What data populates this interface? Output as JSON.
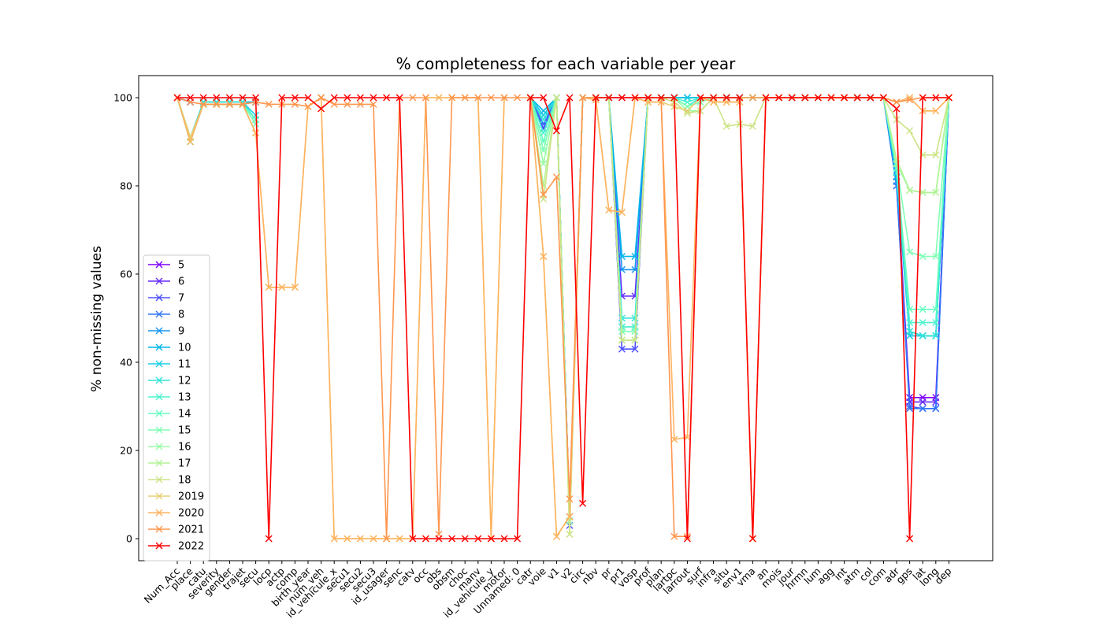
{
  "chart_data": {
    "type": "line",
    "title": "% completeness for each variable per year",
    "xlabel": "",
    "ylabel": "% non-missing values",
    "ylim": [
      -5,
      105
    ],
    "yticks": [
      0,
      20,
      40,
      60,
      80,
      100
    ],
    "grid": false,
    "legend_position": "center-left",
    "marker": "x",
    "categories": [
      "Num_Acc",
      "place",
      "catu",
      "severity",
      "gender",
      "trajet",
      "secu",
      "locp",
      "actp",
      "comp",
      "birth_year",
      "num_veh",
      "id_vehicule_x",
      "secu1",
      "secu2",
      "secu3",
      "id_usager",
      "senc",
      "catv",
      "occ",
      "obs",
      "obsm",
      "choc",
      "manv",
      "id_vehicule_y",
      "motor",
      "Unnamed: 0",
      "catr",
      "voie",
      "v1",
      "v2",
      "circ",
      "nbv",
      "pr",
      "pr1",
      "vosp",
      "prof",
      "plan",
      "lartpc",
      "larrout",
      "surf",
      "infra",
      "situ",
      "env1",
      "vma",
      "an",
      "mois",
      "jour",
      "hrmn",
      "lum",
      "agg",
      "int",
      "atm",
      "col",
      "com",
      "adr",
      "gps",
      "lat",
      "long",
      "dep"
    ],
    "series": [
      {
        "name": "5",
        "color": "#7f00ff",
        "values": [
          100,
          99,
          null,
          null,
          null,
          null,
          99,
          null,
          null,
          null,
          null,
          100,
          null,
          null,
          null,
          null,
          null,
          null,
          null,
          null,
          null,
          null,
          null,
          null,
          null,
          null,
          null,
          100,
          93,
          100,
          5,
          100,
          100,
          100,
          100,
          100,
          100,
          100,
          100,
          100,
          100,
          100,
          100,
          100,
          100,
          100,
          100,
          100,
          100,
          100,
          100,
          100,
          100,
          100,
          100,
          82,
          32,
          32,
          32,
          100
        ]
      },
      {
        "name": "6",
        "color": "#6629fe",
        "values": [
          100,
          99,
          null,
          null,
          null,
          null,
          99,
          null,
          null,
          null,
          null,
          100,
          null,
          null,
          null,
          null,
          null,
          null,
          null,
          null,
          null,
          null,
          null,
          null,
          null,
          null,
          null,
          100,
          93,
          100,
          5,
          100,
          100,
          100,
          55,
          55,
          100,
          100,
          100,
          100,
          100,
          100,
          100,
          100,
          100,
          100,
          100,
          100,
          100,
          100,
          100,
          100,
          100,
          100,
          100,
          81,
          31,
          31,
          31,
          100
        ]
      },
      {
        "name": "7",
        "color": "#4c50fc",
        "values": [
          100,
          99,
          null,
          null,
          null,
          null,
          99,
          null,
          null,
          null,
          null,
          100,
          null,
          null,
          null,
          null,
          null,
          null,
          null,
          null,
          null,
          null,
          null,
          null,
          null,
          null,
          null,
          100,
          93,
          100,
          3,
          100,
          100,
          100,
          43,
          43,
          100,
          100,
          100,
          100,
          100,
          100,
          100,
          100,
          100,
          100,
          100,
          100,
          100,
          100,
          100,
          100,
          100,
          100,
          100,
          80,
          30,
          29.5,
          29.5,
          100
        ]
      },
      {
        "name": "8",
        "color": "#3176f8",
        "values": [
          100,
          99,
          null,
          null,
          null,
          null,
          99,
          null,
          null,
          null,
          null,
          100,
          null,
          null,
          null,
          null,
          null,
          null,
          null,
          null,
          null,
          null,
          null,
          null,
          null,
          null,
          null,
          100,
          94,
          100,
          4,
          100,
          100,
          100,
          48,
          48,
          100,
          100,
          100,
          100,
          100,
          100,
          100,
          100,
          100,
          100,
          100,
          100,
          100,
          100,
          100,
          100,
          100,
          100,
          100,
          80,
          29.5,
          29.5,
          29.5,
          100
        ]
      },
      {
        "name": "9",
        "color": "#1996f3",
        "values": [
          100,
          99,
          null,
          null,
          null,
          null,
          99,
          null,
          null,
          null,
          null,
          100,
          null,
          null,
          null,
          null,
          null,
          null,
          null,
          null,
          null,
          null,
          null,
          null,
          null,
          null,
          null,
          100,
          96,
          100,
          4,
          100,
          100,
          100,
          61,
          61,
          100,
          100,
          100,
          100,
          100,
          100,
          100,
          100,
          100,
          100,
          100,
          100,
          100,
          100,
          100,
          100,
          100,
          100,
          100,
          81,
          46,
          46,
          46,
          100
        ]
      },
      {
        "name": "10",
        "color": "#00b5eb",
        "values": [
          100,
          91,
          99,
          99,
          99,
          99,
          99,
          null,
          null,
          null,
          null,
          100,
          null,
          null,
          null,
          null,
          null,
          null,
          null,
          null,
          null,
          null,
          null,
          null,
          null,
          null,
          null,
          100,
          97,
          100,
          4,
          100,
          100,
          100,
          64,
          64,
          100,
          100,
          100,
          100,
          100,
          100,
          100,
          100,
          100,
          100,
          100,
          100,
          100,
          100,
          100,
          100,
          100,
          100,
          100,
          82,
          47,
          46,
          46,
          100
        ]
      },
      {
        "name": "11",
        "color": "#1acfe2",
        "values": [
          100,
          91,
          99,
          99,
          99,
          99,
          96,
          null,
          null,
          null,
          null,
          100,
          null,
          null,
          null,
          null,
          null,
          null,
          null,
          null,
          null,
          null,
          null,
          null,
          null,
          null,
          null,
          100,
          96,
          100,
          4,
          100,
          100,
          100,
          48,
          48,
          100,
          100,
          100,
          100,
          100,
          100,
          100,
          100,
          100,
          100,
          100,
          100,
          100,
          100,
          100,
          100,
          100,
          100,
          100,
          83,
          46,
          46,
          46,
          100
        ]
      },
      {
        "name": "12",
        "color": "#33e4d7",
        "values": [
          100,
          90,
          99,
          99,
          99,
          99,
          95,
          null,
          null,
          null,
          null,
          100,
          null,
          null,
          null,
          null,
          null,
          null,
          null,
          null,
          null,
          null,
          null,
          null,
          null,
          null,
          null,
          100,
          95,
          100,
          4,
          100,
          100,
          100,
          50,
          50,
          100,
          100,
          100,
          98,
          100,
          100,
          100,
          100,
          100,
          100,
          100,
          100,
          100,
          100,
          100,
          100,
          100,
          100,
          100,
          83,
          47,
          46,
          46,
          100
        ]
      },
      {
        "name": "13",
        "color": "#4df3ce",
        "values": [
          100,
          90,
          98.5,
          98.5,
          98.5,
          98.5,
          95,
          null,
          null,
          null,
          null,
          100,
          null,
          null,
          null,
          null,
          null,
          null,
          null,
          null,
          null,
          null,
          null,
          null,
          null,
          null,
          null,
          100,
          92,
          100,
          4,
          100,
          100,
          100,
          48,
          48,
          100,
          100,
          100,
          99,
          100,
          100,
          100,
          100,
          100,
          100,
          100,
          100,
          100,
          100,
          100,
          100,
          100,
          100,
          100,
          84,
          49,
          49,
          49,
          100
        ]
      },
      {
        "name": "14",
        "color": "#66fcc1",
        "values": [
          100,
          90,
          98.5,
          98.5,
          98.5,
          98.5,
          95,
          null,
          null,
          null,
          null,
          100,
          null,
          null,
          null,
          null,
          null,
          null,
          null,
          null,
          null,
          null,
          null,
          null,
          null,
          null,
          null,
          100,
          90,
          100,
          4,
          100,
          100,
          100,
          47,
          47,
          100,
          100,
          100,
          98,
          99,
          100,
          100,
          100,
          100,
          100,
          100,
          100,
          100,
          100,
          100,
          100,
          100,
          100,
          100,
          84,
          52,
          52,
          52,
          100
        ]
      },
      {
        "name": "15",
        "color": "#80ffb4",
        "values": [
          100,
          90,
          98.5,
          98.5,
          98.5,
          98.5,
          94,
          null,
          null,
          null,
          null,
          100,
          null,
          null,
          null,
          null,
          null,
          null,
          null,
          null,
          null,
          null,
          null,
          null,
          null,
          null,
          null,
          100,
          88,
          100,
          4,
          100,
          100,
          100,
          47,
          47,
          100,
          100,
          100,
          98,
          99,
          100,
          100,
          100,
          100,
          100,
          100,
          100,
          100,
          100,
          100,
          100,
          100,
          100,
          100,
          85,
          65,
          64,
          64,
          100
        ]
      },
      {
        "name": "16",
        "color": "#99fca5",
        "values": [
          100,
          91,
          98.5,
          98.5,
          98.5,
          98.5,
          92,
          null,
          null,
          null,
          null,
          100,
          null,
          null,
          null,
          null,
          null,
          null,
          null,
          null,
          null,
          null,
          null,
          null,
          null,
          null,
          null,
          100,
          85,
          100,
          4,
          100,
          100,
          100,
          45,
          45,
          100,
          100,
          100,
          97,
          97,
          100,
          100,
          100,
          100,
          100,
          100,
          100,
          100,
          100,
          100,
          100,
          100,
          100,
          100,
          85,
          79,
          78.5,
          78.5,
          100
        ]
      },
      {
        "name": "17",
        "color": "#b3f396",
        "values": [
          100,
          91,
          98.5,
          98.5,
          98.5,
          98.5,
          92,
          null,
          null,
          null,
          null,
          100,
          null,
          null,
          null,
          null,
          null,
          null,
          null,
          null,
          null,
          null,
          null,
          null,
          null,
          null,
          null,
          100,
          80,
          100,
          1,
          100,
          100,
          100,
          45,
          45,
          100,
          100,
          99,
          96.5,
          97,
          100,
          100,
          100,
          100,
          100,
          100,
          100,
          100,
          100,
          100,
          100,
          100,
          100,
          100,
          86,
          79,
          78.5,
          78.5,
          100
        ]
      },
      {
        "name": "18",
        "color": "#cce485",
        "values": [
          100,
          91,
          98.5,
          98.5,
          98.5,
          98.5,
          92,
          null,
          null,
          null,
          null,
          100,
          null,
          null,
          null,
          null,
          null,
          null,
          null,
          null,
          null,
          null,
          null,
          null,
          null,
          null,
          null,
          100,
          77,
          100,
          1,
          100,
          100,
          100,
          45,
          45,
          100,
          100,
          99,
          96.5,
          97,
          100,
          93.5,
          94,
          93.5,
          100,
          100,
          100,
          100,
          100,
          100,
          100,
          100,
          100,
          100,
          95,
          92.5,
          87,
          87,
          100
        ]
      },
      {
        "name": "2019",
        "color": "#e6cf74",
        "values": [
          100,
          91,
          98.5,
          98.5,
          98.5,
          98.5,
          92,
          57,
          57,
          57,
          98,
          100,
          0,
          0,
          0,
          0,
          0,
          0,
          0,
          100,
          100,
          100,
          100,
          100,
          0,
          100,
          null,
          100,
          64,
          0.5,
          5,
          100,
          100,
          74.5,
          74,
          100,
          99,
          99,
          98,
          97,
          100,
          99,
          99,
          99,
          0,
          100,
          100,
          100,
          100,
          100,
          100,
          100,
          100,
          100,
          100,
          99,
          100,
          97,
          97,
          100
        ]
      },
      {
        "name": "2020",
        "color": "#ffb360",
        "values": [
          100,
          90,
          98.5,
          98.5,
          98.5,
          98.5,
          92,
          57,
          57,
          57,
          98,
          100,
          0,
          0,
          0,
          0,
          0,
          0,
          0,
          100,
          100,
          100,
          100,
          100,
          0,
          100,
          null,
          100,
          64,
          0.5,
          5,
          100,
          99.5,
          74.5,
          74,
          100,
          99,
          99,
          22.5,
          23,
          100,
          99,
          99,
          99,
          0,
          100,
          100,
          100,
          100,
          100,
          100,
          100,
          100,
          100,
          100,
          99,
          100,
          97,
          97,
          100
        ]
      },
      {
        "name": "2021",
        "color": "#ff964e",
        "values": [
          100,
          99,
          98.5,
          98.5,
          98.5,
          98.5,
          99,
          98.5,
          98.5,
          98.5,
          98,
          100,
          98.5,
          98.5,
          98.5,
          98.5,
          0,
          100,
          100,
          100,
          1,
          100,
          100,
          100,
          100,
          100,
          100,
          100,
          78,
          82,
          9,
          100,
          100,
          100,
          100,
          100,
          100,
          100,
          0.5,
          0.5,
          100,
          100,
          100,
          100,
          100,
          100,
          100,
          100,
          100,
          100,
          100,
          100,
          100,
          100,
          100,
          99,
          99.5,
          100,
          100,
          100
        ]
      },
      {
        "name": "2022",
        "color": "#ff0000",
        "values": [
          100,
          100,
          100,
          100,
          100,
          100,
          100,
          0,
          100,
          100,
          100,
          97.5,
          100,
          100,
          100,
          100,
          100,
          100,
          0,
          0,
          0,
          0,
          0,
          0,
          0,
          0,
          0,
          100,
          100,
          92.5,
          100,
          8,
          100,
          100,
          100,
          100,
          100,
          100,
          100,
          0,
          100,
          100,
          100,
          100,
          0,
          100,
          100,
          100,
          100,
          100,
          100,
          100,
          100,
          100,
          100,
          97.5,
          0,
          100,
          100,
          100
        ]
      }
    ]
  }
}
